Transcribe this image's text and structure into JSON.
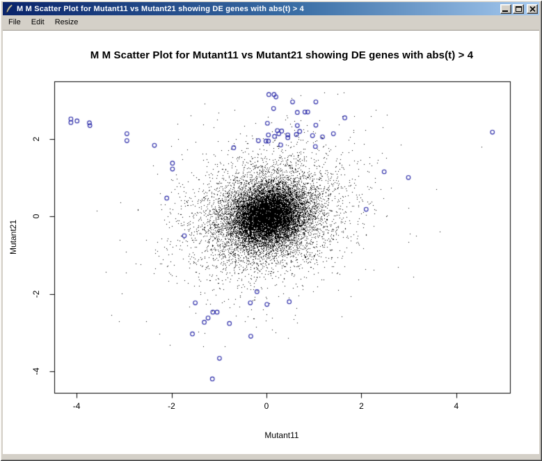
{
  "window": {
    "title": "M M Scatter Plot for Mutant11 vs Mutant21 showing DE genes with abs(t) > 4",
    "icon": "r-graphics-quill-icon",
    "menu": [
      "File",
      "Edit",
      "Resize"
    ],
    "controls": [
      "minimize",
      "maximize",
      "close"
    ]
  },
  "colors": {
    "titlebar_left": "#0a246a",
    "titlebar_right": "#a6caf0",
    "chrome_gray": "#d4d0c8",
    "canvas_bg": "#ffffff",
    "cloud_points": "#000000",
    "de_points": "#2828a8"
  },
  "chart_data": {
    "type": "scatter",
    "title": "M M Scatter Plot for Mutant11 vs Mutant21 showing DE genes with abs(t) > 4",
    "xlabel": "Mutant11",
    "ylabel": "Mutant21",
    "xlim": [
      -4.47,
      5.13
    ],
    "ylim": [
      -4.55,
      3.48
    ],
    "x_ticks": [
      -4,
      -2,
      0,
      2,
      4
    ],
    "y_ticks": [
      -4,
      -2,
      0,
      2
    ],
    "grid": false,
    "legend": null,
    "series": [
      {
        "name": "all-genes-cloud",
        "marker": "pixel-dot",
        "color": "#000000",
        "distribution": {
          "kind": "gaussian-mixture",
          "n": 16000,
          "seed": 42,
          "center": [
            0.03,
            0.02
          ],
          "correlation": 0.15,
          "components": [
            {
              "weight": 0.55,
              "sd": 0.33
            },
            {
              "weight": 0.33,
              "sd": 0.62
            },
            {
              "weight": 0.12,
              "sd": 1.05
            }
          ]
        }
      },
      {
        "name": "de-genes-abs-t-gt-4",
        "marker": "open-circle",
        "color": "#2828a8",
        "points": [
          [
            -4.12,
            2.51
          ],
          [
            -4.12,
            2.42
          ],
          [
            -3.99,
            2.46
          ],
          [
            -3.73,
            2.41
          ],
          [
            -3.72,
            2.34
          ],
          [
            -2.94,
            2.13
          ],
          [
            -2.94,
            1.95
          ],
          [
            -2.36,
            1.83
          ],
          [
            -1.98,
            1.37
          ],
          [
            -1.98,
            1.22
          ],
          [
            -2.1,
            0.47
          ],
          [
            -1.73,
            -0.5
          ],
          [
            -0.69,
            1.77
          ],
          [
            -0.17,
            1.95
          ],
          [
            0.05,
            3.14
          ],
          [
            0.16,
            3.14
          ],
          [
            0.2,
            3.08
          ],
          [
            0.55,
            2.95
          ],
          [
            1.04,
            2.95
          ],
          [
            0.15,
            2.78
          ],
          [
            0.65,
            2.68
          ],
          [
            0.81,
            2.69
          ],
          [
            0.87,
            2.69
          ],
          [
            1.65,
            2.54
          ],
          [
            0.02,
            2.4
          ],
          [
            0.65,
            2.34
          ],
          [
            1.04,
            2.35
          ],
          [
            0.23,
            2.21
          ],
          [
            0.32,
            2.2
          ],
          [
            0.04,
            2.1
          ],
          [
            0.17,
            2.06
          ],
          [
            0.26,
            2.13
          ],
          [
            0.45,
            2.1
          ],
          [
            0.45,
            2.03
          ],
          [
            0.63,
            2.11
          ],
          [
            0.7,
            2.19
          ],
          [
            0.97,
            2.08
          ],
          [
            1.18,
            2.05
          ],
          [
            1.41,
            2.13
          ],
          [
            -0.01,
            1.94
          ],
          [
            0.04,
            1.94
          ],
          [
            0.3,
            1.84
          ],
          [
            1.03,
            1.8
          ],
          [
            2.48,
            1.15
          ],
          [
            2.99,
            1.0
          ],
          [
            4.76,
            2.17
          ],
          [
            2.1,
            0.18
          ],
          [
            -0.2,
            -1.94
          ],
          [
            -1.5,
            -2.23
          ],
          [
            -0.34,
            -2.23
          ],
          [
            0.01,
            -2.27
          ],
          [
            0.48,
            -2.2
          ],
          [
            -1.13,
            -2.47
          ],
          [
            -1.04,
            -2.47
          ],
          [
            -1.23,
            -2.62
          ],
          [
            -1.31,
            -2.73
          ],
          [
            -0.78,
            -2.76
          ],
          [
            -1.56,
            -3.03
          ],
          [
            -0.33,
            -3.09
          ],
          [
            -0.99,
            -3.66
          ],
          [
            -1.14,
            -4.19
          ]
        ]
      }
    ]
  }
}
